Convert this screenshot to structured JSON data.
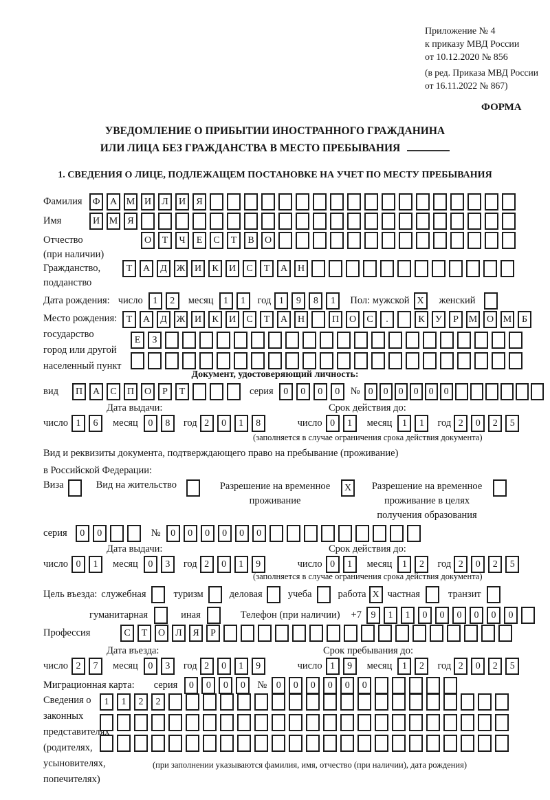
{
  "document": {
    "appendix": [
      "Приложение № 4",
      "к приказу МВД России",
      "от 10.12.2020 № 856"
    ],
    "edition": [
      "(в ред. Приказа МВД России",
      "от 16.11.2022 № 867)"
    ],
    "form_label": "ФОРМА",
    "title1": "УВЕДОМЛЕНИЕ О ПРИБЫТИИ ИНОСТРАННОГО ГРАЖДАНИНА",
    "title2": "ИЛИ ЛИЦА БЕЗ ГРАЖДАНСТВА В МЕСТО ПРЕБЫВАНИЯ",
    "section1": "1. СВЕДЕНИЯ О ЛИЦЕ, ПОДЛЕЖАЩЕМ ПОСТАНОВКЕ НА УЧЕТ ПО МЕСТУ ПРЕБЫВАНИЯ"
  },
  "surname": {
    "label": "Фамилия",
    "box": {
      "cells": 25,
      "value": "ФАМИЛИЯ"
    }
  },
  "firstname": {
    "label": "Имя",
    "box": {
      "cells": 25,
      "value": "ИМЯ"
    }
  },
  "patronymic": {
    "label": "Отчество",
    "label2": "(при наличии)",
    "box": {
      "cells": 22,
      "value": "ОТЧЕСТВО"
    }
  },
  "citizenship": {
    "label": "Гражданство,",
    "label2": "подданство",
    "box": {
      "cells": 23,
      "value": "ТАДЖИКИСТАН"
    }
  },
  "birth_date": {
    "label": "Дата рождения:",
    "day_label": "число",
    "day": {
      "cells": 2,
      "value": "12"
    },
    "month_label": "месяц",
    "month": {
      "cells": 2,
      "value": "11"
    },
    "year_label": "год",
    "year": {
      "cells": 4,
      "value": "1981"
    },
    "gender_label": "Пол: мужской",
    "male": {
      "cells": 1,
      "value": "X"
    },
    "female_label": "женский",
    "female": {
      "cells": 1,
      "value": ""
    }
  },
  "birth_place": {
    "label1": "Место рождения:",
    "label2": "государство",
    "label3": "город или другой",
    "label4": "населенный пункт",
    "row1": {
      "cells": 24,
      "value": "ТАДЖИКИСТАН ПОС. КУРМОМБ"
    },
    "row2": {
      "cells": 23,
      "value": "ЕЗ"
    },
    "row3": {
      "cells": 23,
      "value": ""
    }
  },
  "identity_doc": {
    "title": "Документ, удостоверяющий личность:",
    "type_label": "вид",
    "type": {
      "cells": 10,
      "value": "ПАСПОРТ"
    },
    "series_label": "серия",
    "series": {
      "cells": 4,
      "value": "0000"
    },
    "number_label": "№",
    "number": {
      "cells": 12,
      "value": "000000"
    },
    "issue_title": "Дата выдачи:",
    "issue_day_label": "число",
    "issue_day": {
      "cells": 2,
      "value": "16"
    },
    "issue_month_label": "месяц",
    "issue_month": {
      "cells": 2,
      "value": "08"
    },
    "issue_year_label": "год",
    "issue_year": {
      "cells": 4,
      "value": "2018"
    },
    "expiry_title": "Срок действия до:",
    "expiry_day_label": "число",
    "expiry_day": {
      "cells": 2,
      "value": "01"
    },
    "expiry_month_label": "месяц",
    "expiry_month": {
      "cells": 2,
      "value": "11"
    },
    "expiry_year_label": "год",
    "expiry_year": {
      "cells": 4,
      "value": "2025"
    },
    "note": "(заполняется в случае ограничения срока действия документа)"
  },
  "residence_doc": {
    "intro1": "Вид и реквизиты документа, подтверждающего право на пребывание (проживание)",
    "intro2": "в Российской Федерации:",
    "opt1_label": "Виза",
    "opt1": {
      "cells": 1,
      "value": ""
    },
    "opt2_label": "Вид на жительство",
    "opt2": {
      "cells": 1,
      "value": ""
    },
    "opt3_line1": "Разрешение на временное",
    "opt3_line2": "проживание",
    "opt3": {
      "cells": 1,
      "value": "X"
    },
    "opt4_line1": "Разрешение на временное",
    "opt4_line2": "проживание в целях",
    "opt4_line3": "получения образования",
    "opt4": {
      "cells": 1,
      "value": ""
    },
    "series_label": "серия",
    "series": {
      "cells": 4,
      "value": "00"
    },
    "number_label": "№",
    "number": {
      "cells": 15,
      "value": "000000"
    },
    "issue_title": "Дата выдачи:",
    "issue_day_label": "число",
    "issue_day": {
      "cells": 2,
      "value": "01"
    },
    "issue_month_label": "месяц",
    "issue_month": {
      "cells": 2,
      "value": "03"
    },
    "issue_year_label": "год",
    "issue_year": {
      "cells": 4,
      "value": "2019"
    },
    "expiry_title": "Срок действия до:",
    "expiry_day_label": "число",
    "expiry_day": {
      "cells": 2,
      "value": "01"
    },
    "expiry_month_label": "месяц",
    "expiry_month": {
      "cells": 2,
      "value": "12"
    },
    "expiry_year_label": "год",
    "expiry_year": {
      "cells": 4,
      "value": "2025"
    },
    "note": "(заполняется в случае ограничения срока действия документа)"
  },
  "visit_purpose": {
    "label": "Цель въезда:",
    "opts1": [
      {
        "label": "служебная",
        "box": {
          "cells": 1,
          "value": ""
        }
      },
      {
        "label": "туризм",
        "box": {
          "cells": 1,
          "value": ""
        }
      },
      {
        "label": "деловая",
        "box": {
          "cells": 1,
          "value": ""
        }
      },
      {
        "label": "учеба",
        "box": {
          "cells": 1,
          "value": ""
        }
      },
      {
        "label": "работа",
        "box": {
          "cells": 1,
          "value": "X"
        }
      },
      {
        "label": "частная",
        "box": {
          "cells": 1,
          "value": ""
        }
      },
      {
        "label": "транзит",
        "box": {
          "cells": 1,
          "value": ""
        }
      }
    ],
    "opts2": [
      {
        "label": "гуманитарная",
        "box": {
          "cells": 1,
          "value": ""
        }
      },
      {
        "label": "иная",
        "box": {
          "cells": 1,
          "value": ""
        }
      }
    ],
    "phone_label": "Телефон (при наличии)",
    "phone_prefix": "+7",
    "phone": {
      "cells": 10,
      "value": "911000000"
    }
  },
  "profession": {
    "label": "Профессия",
    "box": {
      "cells": 23,
      "value": "СТОЛЯР"
    }
  },
  "entry": {
    "entry_title": "Дата въезда:",
    "entry_day_label": "число",
    "entry_day": {
      "cells": 2,
      "value": "27"
    },
    "entry_month_label": "месяц",
    "entry_month": {
      "cells": 2,
      "value": "03"
    },
    "entry_year_label": "год",
    "entry_year": {
      "cells": 4,
      "value": "2019"
    },
    "stay_title": "Срок пребывания до:",
    "stay_day_label": "число",
    "stay_day": {
      "cells": 2,
      "value": "19"
    },
    "stay_month_label": "месяц",
    "stay_month": {
      "cells": 2,
      "value": "12"
    },
    "stay_year_label": "год",
    "stay_year": {
      "cells": 4,
      "value": "2025"
    }
  },
  "migration_card": {
    "label": "Миграционная карта:",
    "series_label": "серия",
    "series": {
      "cells": 4,
      "value": "0000"
    },
    "number_label": "№",
    "number": {
      "cells": 11,
      "value": "000000"
    }
  },
  "representatives": {
    "label1": "Сведения о",
    "label2": "законных",
    "label3": "представителях",
    "label4": "(родителях,",
    "label5": "усыновителях,",
    "label6": "попечителях)",
    "row1": {
      "cells": 24,
      "value": "1122"
    },
    "row2": {
      "cells": 24,
      "value": ""
    },
    "row3": {
      "cells": 24,
      "value": ""
    },
    "note": "(при заполнении указываются фамилия, имя, отчество (при наличии), дата рождения)"
  }
}
